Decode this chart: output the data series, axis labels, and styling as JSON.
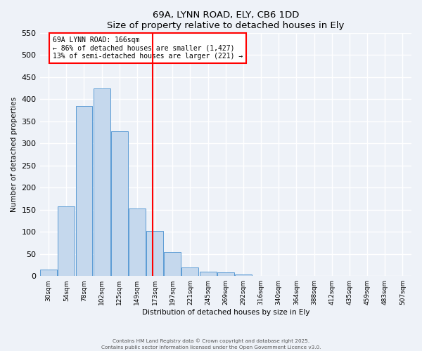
{
  "title": "69A, LYNN ROAD, ELY, CB6 1DD",
  "subtitle": "Size of property relative to detached houses in Ely",
  "xlabel": "Distribution of detached houses by size in Ely",
  "ylabel": "Number of detached properties",
  "bar_labels": [
    "30sqm",
    "54sqm",
    "78sqm",
    "102sqm",
    "125sqm",
    "149sqm",
    "173sqm",
    "197sqm",
    "221sqm",
    "245sqm",
    "269sqm",
    "292sqm",
    "316sqm",
    "340sqm",
    "364sqm",
    "388sqm",
    "412sqm",
    "435sqm",
    "459sqm",
    "483sqm",
    "507sqm"
  ],
  "bar_values": [
    15,
    157,
    385,
    425,
    328,
    153,
    102,
    55,
    20,
    10,
    8,
    3,
    1,
    1,
    0,
    0,
    0,
    0,
    0,
    0,
    0
  ],
  "bar_color": "#c5d8ed",
  "bar_edge_color": "#5b9bd5",
  "vline_x": 5.88,
  "vline_color": "red",
  "annotation_line1": "69A LYNN ROAD: 166sqm",
  "annotation_line2": "← 86% of detached houses are smaller (1,427)",
  "annotation_line3": "13% of semi-detached houses are larger (221) →",
  "ylim": [
    0,
    550
  ],
  "yticks": [
    0,
    50,
    100,
    150,
    200,
    250,
    300,
    350,
    400,
    450,
    500,
    550
  ],
  "background_color": "#eef2f8",
  "plot_background_color": "#eef2f8",
  "grid_color": "#ffffff",
  "footer1": "Contains HM Land Registry data © Crown copyright and database right 2025.",
  "footer2": "Contains public sector information licensed under the Open Government Licence v3.0."
}
